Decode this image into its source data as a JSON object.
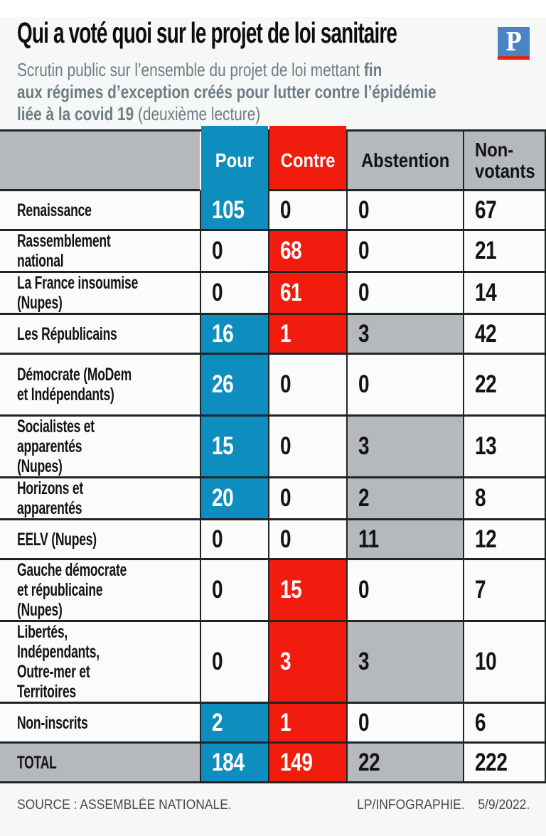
{
  "page": {
    "title": "Qui a voté quoi sur le projet de loi sanitaire",
    "subtitle": {
      "line1_regular": "Scrutin public sur l’ensemble du projet de loi mettant ",
      "line1_bold": "fin",
      "line2_bold": "aux régimes d’exception créés pour lutter contre l’épidémie",
      "line3_bold": "liée à la covid 19 ",
      "line3_regular": "(deuxième lecture)"
    },
    "logo": {
      "letter": "P"
    },
    "footer": {
      "source": "SOURCE : ASSEMBLÉE NATIONALE.",
      "credit": "LP/INFOGRAPHIE.",
      "date": "5/9/2022."
    }
  },
  "colors": {
    "pour_blue": "#0d8ebe",
    "contre_red": "#f11c0d",
    "neutral_gray": "#b5b9bb"
  },
  "table": {
    "header": {
      "party": "",
      "pour": "Pour",
      "contre": "Contre",
      "abstention": "Abstention",
      "non_votants": "Non-\nvotants"
    },
    "rows": [
      {
        "label": "Renaissance",
        "pour": 105,
        "contre": 0,
        "abstention": 0,
        "non_votants": 67
      },
      {
        "label": "Rassemblement national",
        "pour": 0,
        "contre": 68,
        "abstention": 0,
        "non_votants": 21
      },
      {
        "label": "La France insoumise (Nupes)",
        "pour": 0,
        "contre": 61,
        "abstention": 0,
        "non_votants": 14
      },
      {
        "label": "Les Républicains",
        "pour": 16,
        "contre": 1,
        "abstention": 3,
        "non_votants": 42
      },
      {
        "label": "Démocrate (MoDem\net Indépendants)",
        "pour": 26,
        "contre": 0,
        "abstention": 0,
        "non_votants": 22
      },
      {
        "label": "Socialistes et apparentés\n(Nupes)",
        "pour": 15,
        "contre": 0,
        "abstention": 3,
        "non_votants": 13
      },
      {
        "label": "Horizons et apparentés",
        "pour": 20,
        "contre": 0,
        "abstention": 2,
        "non_votants": 8
      },
      {
        "label": "EELV (Nupes)",
        "pour": 0,
        "contre": 0,
        "abstention": 11,
        "non_votants": 12
      },
      {
        "label": "Gauche démocrate\net républicaine (Nupes)",
        "pour": 0,
        "contre": 15,
        "abstention": 0,
        "non_votants": 7
      },
      {
        "label": "Libertés, Indépendants,\nOutre-mer et Territoires",
        "pour": 0,
        "contre": 3,
        "abstention": 3,
        "non_votants": 10
      },
      {
        "label": "Non-inscrits",
        "pour": 2,
        "contre": 1,
        "abstention": 0,
        "non_votants": 6
      },
      {
        "label": "TOTAL",
        "pour": 184,
        "contre": 149,
        "abstention": 22,
        "non_votants": 222,
        "is_total": true
      }
    ]
  },
  "chart_data": {
    "type": "table",
    "title": "Qui a voté quoi sur le projet de loi sanitaire",
    "subtitle": "Scrutin public sur l’ensemble du projet de loi mettant fin aux régimes d’exception créés pour lutter contre l’épidémie liée à la covid 19 (deuxième lecture)",
    "columns": [
      "Pour",
      "Contre",
      "Abstention",
      "Non-votants"
    ],
    "categories": [
      "Renaissance",
      "Rassemblement national",
      "La France insoumise (Nupes)",
      "Les Républicains",
      "Démocrate (MoDem et Indépendants)",
      "Socialistes et apparentés (Nupes)",
      "Horizons et apparentés",
      "EELV (Nupes)",
      "Gauche démocrate et républicaine (Nupes)",
      "Libertés, Indépendants, Outre-mer et Territoires",
      "Non-inscrits",
      "TOTAL"
    ],
    "series": [
      {
        "name": "Pour",
        "values": [
          105,
          0,
          0,
          16,
          26,
          15,
          20,
          0,
          0,
          0,
          2,
          184
        ]
      },
      {
        "name": "Contre",
        "values": [
          0,
          68,
          61,
          1,
          0,
          0,
          0,
          0,
          15,
          3,
          1,
          149
        ]
      },
      {
        "name": "Abstention",
        "values": [
          0,
          0,
          0,
          3,
          0,
          3,
          2,
          11,
          0,
          3,
          0,
          22
        ]
      },
      {
        "name": "Non-votants",
        "values": [
          67,
          21,
          14,
          42,
          22,
          13,
          8,
          12,
          7,
          10,
          6,
          222
        ]
      }
    ],
    "legend_position": "none",
    "source": "SOURCE : ASSEMBLÉE NATIONALE.",
    "credit": "LP/INFOGRAPHIE. 5/9/2022."
  }
}
